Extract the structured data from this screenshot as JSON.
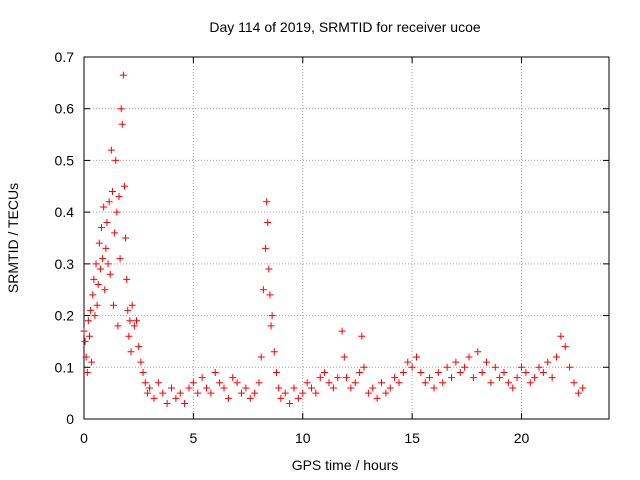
{
  "chart_data": {
    "type": "scatter",
    "title": "Day 114 of 2019, SRMTID for receiver ucoe",
    "xlabel": "GPS time / hours",
    "ylabel": "SRMTID / TECUs",
    "xlim": [
      0,
      24
    ],
    "ylim": [
      0,
      0.7
    ],
    "xticks": [
      0,
      5,
      10,
      15,
      20
    ],
    "yticks": [
      0,
      0.1,
      0.2,
      0.3,
      0.4,
      0.5,
      0.6,
      0.7
    ],
    "xtick_labels": [
      "0",
      "5",
      "10",
      "15",
      "20"
    ],
    "ytick_labels": [
      "0",
      "0.1",
      "0.2",
      "0.3",
      "0.4",
      "0.5",
      "0.6",
      "0.7"
    ],
    "grid": true,
    "marker": "plus",
    "color": "#ff0000",
    "series": [
      {
        "name": "SRMTID",
        "points": [
          [
            0.0,
            0.17
          ],
          [
            0.05,
            0.15
          ],
          [
            0.1,
            0.12
          ],
          [
            0.15,
            0.09
          ],
          [
            0.2,
            0.19
          ],
          [
            0.25,
            0.16
          ],
          [
            0.3,
            0.21
          ],
          [
            0.35,
            0.11
          ],
          [
            0.4,
            0.24
          ],
          [
            0.45,
            0.27
          ],
          [
            0.5,
            0.2
          ],
          [
            0.55,
            0.3
          ],
          [
            0.6,
            0.22
          ],
          [
            0.65,
            0.26
          ],
          [
            0.7,
            0.34
          ],
          [
            0.75,
            0.29
          ],
          [
            0.8,
            0.37
          ],
          [
            0.85,
            0.31
          ],
          [
            0.9,
            0.41
          ],
          [
            0.95,
            0.25
          ],
          [
            1.0,
            0.33
          ],
          [
            1.05,
            0.38
          ],
          [
            1.1,
            0.3
          ],
          [
            1.15,
            0.42
          ],
          [
            1.2,
            0.28
          ],
          [
            1.25,
            0.52
          ],
          [
            1.3,
            0.44
          ],
          [
            1.35,
            0.22
          ],
          [
            1.4,
            0.36
          ],
          [
            1.45,
            0.5
          ],
          [
            1.5,
            0.4
          ],
          [
            1.55,
            0.18
          ],
          [
            1.6,
            0.43
          ],
          [
            1.65,
            0.31
          ],
          [
            1.7,
            0.6
          ],
          [
            1.75,
            0.57
          ],
          [
            1.8,
            0.665
          ],
          [
            1.85,
            0.45
          ],
          [
            1.9,
            0.35
          ],
          [
            1.95,
            0.27
          ],
          [
            2.0,
            0.21
          ],
          [
            2.05,
            0.16
          ],
          [
            2.1,
            0.19
          ],
          [
            2.15,
            0.13
          ],
          [
            2.2,
            0.22
          ],
          [
            2.3,
            0.18
          ],
          [
            2.4,
            0.19
          ],
          [
            2.5,
            0.14
          ],
          [
            2.6,
            0.11
          ],
          [
            2.7,
            0.09
          ],
          [
            2.8,
            0.07
          ],
          [
            2.9,
            0.05
          ],
          [
            3.0,
            0.06
          ],
          [
            3.2,
            0.04
          ],
          [
            3.4,
            0.07
          ],
          [
            3.6,
            0.05
          ],
          [
            3.8,
            0.03
          ],
          [
            4.0,
            0.06
          ],
          [
            4.2,
            0.04
          ],
          [
            4.4,
            0.05
          ],
          [
            4.6,
            0.03
          ],
          [
            4.8,
            0.06
          ],
          [
            5.0,
            0.07
          ],
          [
            5.2,
            0.05
          ],
          [
            5.4,
            0.08
          ],
          [
            5.6,
            0.06
          ],
          [
            5.8,
            0.05
          ],
          [
            6.0,
            0.09
          ],
          [
            6.2,
            0.07
          ],
          [
            6.4,
            0.06
          ],
          [
            6.6,
            0.04
          ],
          [
            6.8,
            0.08
          ],
          [
            7.0,
            0.07
          ],
          [
            7.2,
            0.05
          ],
          [
            7.4,
            0.06
          ],
          [
            7.6,
            0.04
          ],
          [
            7.8,
            0.05
          ],
          [
            8.0,
            0.07
          ],
          [
            8.1,
            0.12
          ],
          [
            8.2,
            0.25
          ],
          [
            8.3,
            0.33
          ],
          [
            8.35,
            0.42
          ],
          [
            8.4,
            0.38
          ],
          [
            8.45,
            0.29
          ],
          [
            8.5,
            0.24
          ],
          [
            8.55,
            0.18
          ],
          [
            8.6,
            0.2
          ],
          [
            8.7,
            0.13
          ],
          [
            8.8,
            0.09
          ],
          [
            8.9,
            0.06
          ],
          [
            9.0,
            0.04
          ],
          [
            9.2,
            0.05
          ],
          [
            9.4,
            0.03
          ],
          [
            9.6,
            0.06
          ],
          [
            9.8,
            0.04
          ],
          [
            10.0,
            0.05
          ],
          [
            10.2,
            0.07
          ],
          [
            10.4,
            0.06
          ],
          [
            10.6,
            0.05
          ],
          [
            10.8,
            0.08
          ],
          [
            11.0,
            0.09
          ],
          [
            11.2,
            0.07
          ],
          [
            11.4,
            0.06
          ],
          [
            11.6,
            0.08
          ],
          [
            11.8,
            0.17
          ],
          [
            11.9,
            0.12
          ],
          [
            12.0,
            0.08
          ],
          [
            12.2,
            0.06
          ],
          [
            12.4,
            0.07
          ],
          [
            12.6,
            0.09
          ],
          [
            12.7,
            0.16
          ],
          [
            12.8,
            0.1
          ],
          [
            13.0,
            0.05
          ],
          [
            13.2,
            0.06
          ],
          [
            13.4,
            0.04
          ],
          [
            13.6,
            0.07
          ],
          [
            13.8,
            0.05
          ],
          [
            14.0,
            0.06
          ],
          [
            14.2,
            0.08
          ],
          [
            14.4,
            0.07
          ],
          [
            14.6,
            0.09
          ],
          [
            14.8,
            0.11
          ],
          [
            15.0,
            0.1
          ],
          [
            15.2,
            0.12
          ],
          [
            15.4,
            0.09
          ],
          [
            15.6,
            0.07
          ],
          [
            15.8,
            0.08
          ],
          [
            16.0,
            0.06
          ],
          [
            16.2,
            0.09
          ],
          [
            16.4,
            0.07
          ],
          [
            16.6,
            0.1
          ],
          [
            16.8,
            0.08
          ],
          [
            17.0,
            0.11
          ],
          [
            17.2,
            0.09
          ],
          [
            17.4,
            0.1
          ],
          [
            17.6,
            0.12
          ],
          [
            17.8,
            0.08
          ],
          [
            18.0,
            0.13
          ],
          [
            18.2,
            0.09
          ],
          [
            18.4,
            0.11
          ],
          [
            18.6,
            0.07
          ],
          [
            18.8,
            0.1
          ],
          [
            19.0,
            0.08
          ],
          [
            19.2,
            0.09
          ],
          [
            19.4,
            0.07
          ],
          [
            19.6,
            0.06
          ],
          [
            19.8,
            0.08
          ],
          [
            20.0,
            0.1
          ],
          [
            20.2,
            0.09
          ],
          [
            20.4,
            0.07
          ],
          [
            20.6,
            0.08
          ],
          [
            20.8,
            0.1
          ],
          [
            21.0,
            0.09
          ],
          [
            21.2,
            0.11
          ],
          [
            21.4,
            0.08
          ],
          [
            21.6,
            0.12
          ],
          [
            21.8,
            0.16
          ],
          [
            22.0,
            0.14
          ],
          [
            22.2,
            0.1
          ],
          [
            22.4,
            0.07
          ],
          [
            22.6,
            0.05
          ],
          [
            22.8,
            0.06
          ]
        ]
      }
    ]
  }
}
